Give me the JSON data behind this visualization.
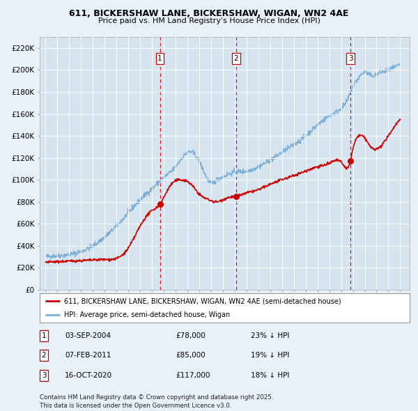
{
  "title1": "611, BICKERSHAW LANE, BICKERSHAW, WIGAN, WN2 4AE",
  "title2": "Price paid vs. HM Land Registry's House Price Index (HPI)",
  "background_color": "#e8f0f8",
  "plot_bg_color": "#d6e4f0",
  "red_color": "#cc0000",
  "blue_color": "#7aaed6",
  "dashed_color": "#cc0000",
  "sale_markers": [
    {
      "date_num": 2004.67,
      "price": 78000,
      "label": "1"
    },
    {
      "date_num": 2011.1,
      "price": 85000,
      "label": "2"
    },
    {
      "date_num": 2020.79,
      "price": 117000,
      "label": "3"
    }
  ],
  "ylim": [
    0,
    230000
  ],
  "xlim": [
    1994.5,
    2025.8
  ],
  "yticks": [
    0,
    20000,
    40000,
    60000,
    80000,
    100000,
    120000,
    140000,
    160000,
    180000,
    200000,
    220000
  ],
  "ytick_labels": [
    "£0",
    "£20K",
    "£40K",
    "£60K",
    "£80K",
    "£100K",
    "£120K",
    "£140K",
    "£160K",
    "£180K",
    "£200K",
    "£220K"
  ],
  "xticks": [
    1995,
    1996,
    1997,
    1998,
    1999,
    2000,
    2001,
    2002,
    2003,
    2004,
    2005,
    2006,
    2007,
    2008,
    2009,
    2010,
    2011,
    2012,
    2013,
    2014,
    2015,
    2016,
    2017,
    2018,
    2019,
    2020,
    2021,
    2022,
    2023,
    2024,
    2025
  ],
  "legend_entries": [
    "611, BICKERSHAW LANE, BICKERSHAW, WIGAN, WN2 4AE (semi-detached house)",
    "HPI: Average price, semi-detached house, Wigan"
  ],
  "table_rows": [
    {
      "num": "1",
      "date": "03-SEP-2004",
      "price": "£78,000",
      "note": "23% ↓ HPI"
    },
    {
      "num": "2",
      "date": "07-FEB-2011",
      "price": "£85,000",
      "note": "19% ↓ HPI"
    },
    {
      "num": "3",
      "date": "16-OCT-2020",
      "price": "£117,000",
      "note": "18% ↓ HPI"
    }
  ],
  "footer": "Contains HM Land Registry data © Crown copyright and database right 2025.\nThis data is licensed under the Open Government Licence v3.0."
}
